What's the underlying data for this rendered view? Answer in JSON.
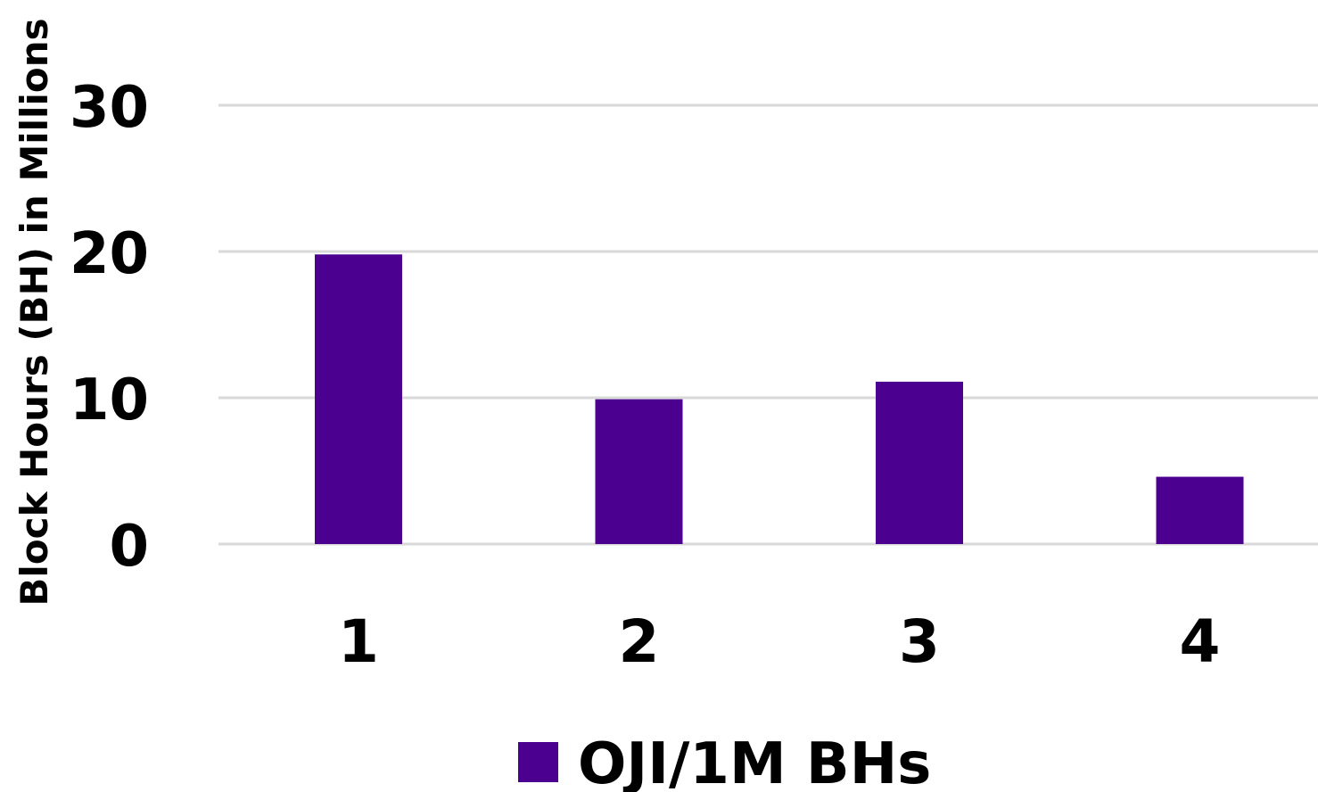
{
  "chart_data": {
    "type": "bar",
    "title": "",
    "xlabel": "",
    "ylabel": "Block Hours (BH) in Millions",
    "categories": [
      "1",
      "2",
      "3",
      "4"
    ],
    "series": [
      {
        "name": "OJI/1M BHs",
        "values": [
          19.8,
          9.9,
          11.1,
          4.6
        ]
      }
    ],
    "ylim": [
      0,
      30
    ],
    "yticks": [
      0,
      10,
      20,
      30
    ],
    "grid": true,
    "legend_position": "bottom",
    "colors": {
      "bar": "#4b0090",
      "grid": "#d9d9d9"
    }
  }
}
